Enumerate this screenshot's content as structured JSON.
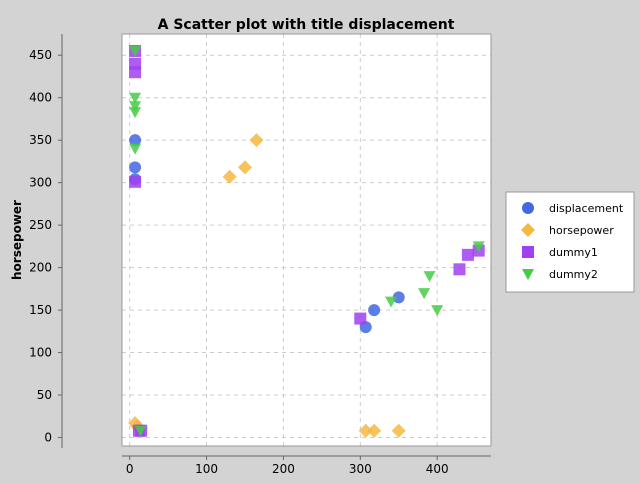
{
  "chart_data": {
    "type": "scatter",
    "title": "A Scatter plot with title displacement",
    "xlabel": "",
    "ylabel": "horsepower",
    "xlim": [
      -10,
      470
    ],
    "ylim": [
      -10,
      475
    ],
    "xticks": [
      0,
      100,
      200,
      300,
      400
    ],
    "yticks": [
      0,
      50,
      100,
      150,
      200,
      250,
      300,
      350,
      400,
      450
    ],
    "grid": true,
    "legend_position": "right",
    "series": [
      {
        "name": "displacement",
        "marker": "circle",
        "color": "#4169e1",
        "points": [
          [
            7,
            350
          ],
          [
            7,
            318
          ],
          [
            7,
            304
          ],
          [
            307,
            130
          ],
          [
            318,
            150
          ],
          [
            350,
            165
          ]
        ]
      },
      {
        "name": "horsepower",
        "marker": "diamond",
        "color": "#f5b942",
        "points": [
          [
            7,
            17
          ],
          [
            10,
            13
          ],
          [
            130,
            307
          ],
          [
            150,
            318
          ],
          [
            165,
            350
          ],
          [
            307,
            8
          ],
          [
            318,
            8
          ],
          [
            350,
            8
          ]
        ]
      },
      {
        "name": "dummy1",
        "marker": "square",
        "color": "#a040f0",
        "points": [
          [
            7,
            455
          ],
          [
            7,
            440
          ],
          [
            7,
            430
          ],
          [
            7,
            301
          ],
          [
            12,
            8
          ],
          [
            15,
            8
          ],
          [
            300,
            140
          ],
          [
            429,
            198
          ],
          [
            440,
            215
          ],
          [
            454,
            220
          ]
        ]
      },
      {
        "name": "dummy2",
        "marker": "triangle",
        "color": "#44cc44",
        "points": [
          [
            7,
            455
          ],
          [
            7,
            400
          ],
          [
            7,
            390
          ],
          [
            7,
            383
          ],
          [
            7,
            340
          ],
          [
            14,
            8
          ],
          [
            340,
            160
          ],
          [
            383,
            170
          ],
          [
            390,
            190
          ],
          [
            400,
            150
          ],
          [
            454,
            225
          ]
        ]
      }
    ]
  }
}
